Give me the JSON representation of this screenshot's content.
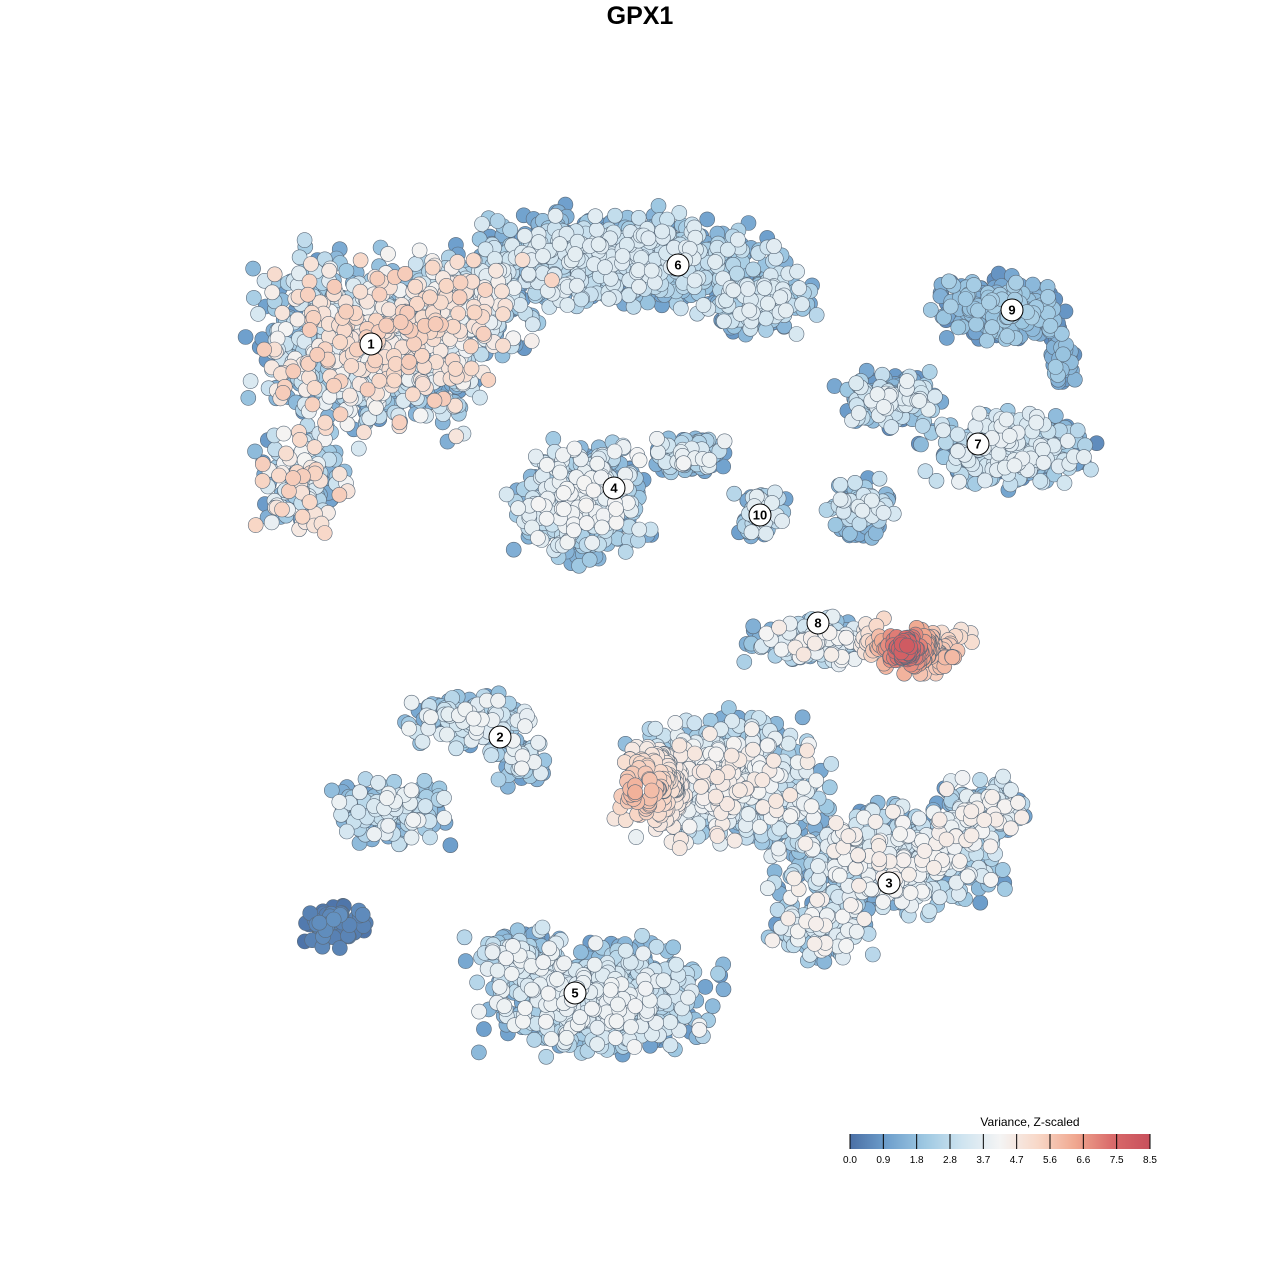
{
  "chart_data": {
    "type": "scatter",
    "title": "GPX1",
    "xlabel": "",
    "ylabel": "",
    "grid": false,
    "axes_visible": false,
    "legend_placement": "bottom-right",
    "colorbar": {
      "title": "Variance, Z-scaled",
      "ticks": [
        "0.0",
        "0.9",
        "1.8",
        "2.8",
        "3.7",
        "4.7",
        "5.6",
        "6.6",
        "7.5",
        "8.5"
      ],
      "range": [
        0,
        8.5
      ],
      "colors": [
        "#4a6fa5",
        "#6fa0cd",
        "#9ec8e2",
        "#cfe4f0",
        "#f4f4f4",
        "#f8d8c8",
        "#f0a890",
        "#d96a6a",
        "#c8505c"
      ]
    },
    "clusters": [
      {
        "label": "1",
        "center": [
          371,
          344
        ],
        "value_range": [
          0.9,
          5.6
        ],
        "hot": [
          [
            330,
            555,
            6.1
          ]
        ]
      },
      {
        "label": "2",
        "center": [
          500,
          737
        ],
        "value_range": [
          1.0,
          4.2
        ],
        "hot": []
      },
      {
        "label": "3",
        "center": [
          889,
          883
        ],
        "value_range": [
          0.9,
          4.6
        ],
        "hot": []
      },
      {
        "label": "4",
        "center": [
          614,
          488
        ],
        "value_range": [
          0.9,
          4.3
        ],
        "hot": []
      },
      {
        "label": "5",
        "center": [
          575,
          993
        ],
        "value_range": [
          0.9,
          4.2
        ],
        "hot": []
      },
      {
        "label": "6",
        "center": [
          678,
          265
        ],
        "value_range": [
          0.9,
          3.8
        ],
        "hot": []
      },
      {
        "label": "7",
        "center": [
          978,
          444
        ],
        "value_range": [
          0.6,
          4.0
        ],
        "hot": []
      },
      {
        "label": "8",
        "center": [
          818,
          623
        ],
        "value_range": [
          1.2,
          4.8
        ],
        "hot": [
          [
            905,
            648,
            8.3
          ],
          [
            950,
            662,
            6.2
          ],
          [
            850,
            560,
            6.0
          ],
          [
            580,
            775,
            7.6
          ],
          [
            640,
            790,
            6.4
          ],
          [
            665,
            885,
            6.3
          ]
        ]
      },
      {
        "label": "9",
        "center": [
          1012,
          310
        ],
        "value_range": [
          0.6,
          2.4
        ],
        "hot": []
      },
      {
        "label": "10",
        "center": [
          760,
          515
        ],
        "value_range": [
          1.0,
          3.8
        ],
        "hot": []
      },
      {
        "label": "",
        "center": [
          340,
          930
        ],
        "value_range": [
          0.0,
          0.8
        ],
        "hot": []
      }
    ]
  }
}
